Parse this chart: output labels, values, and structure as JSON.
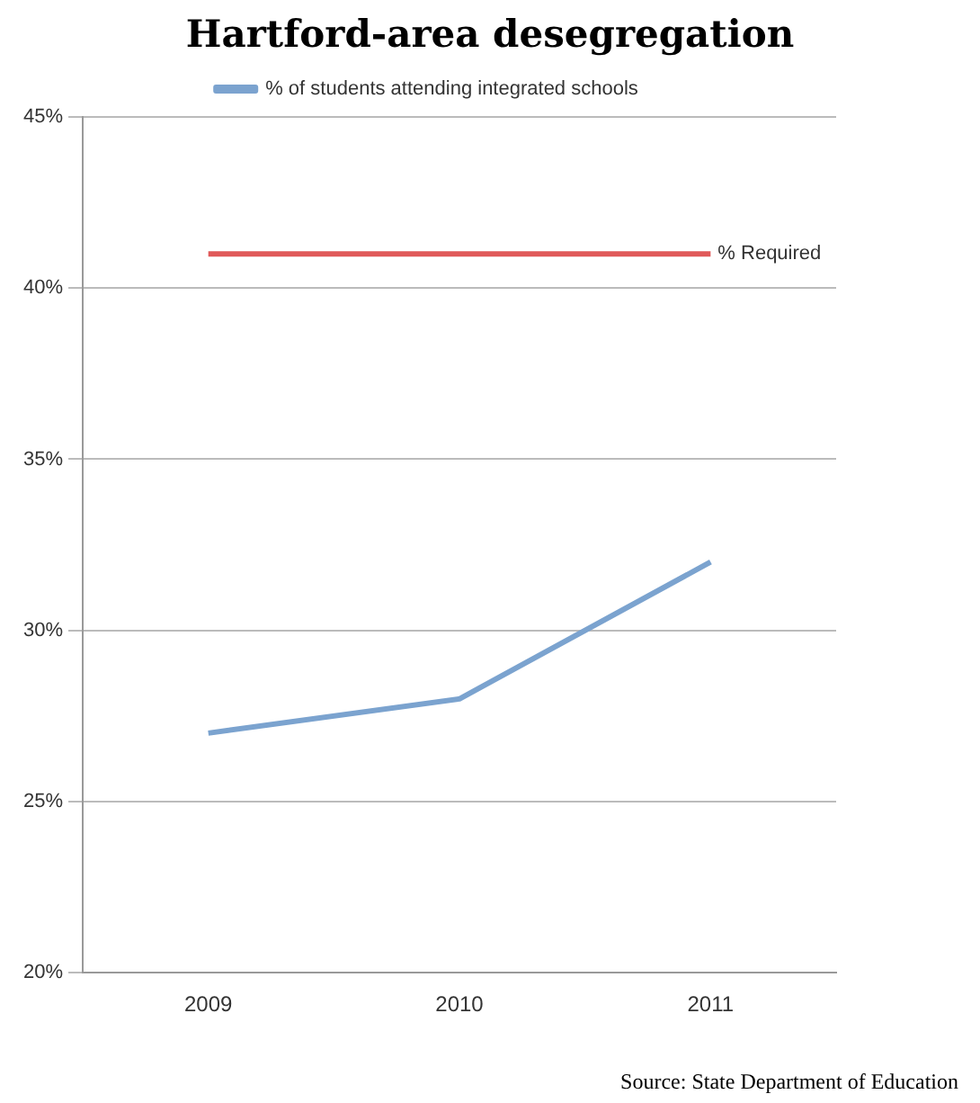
{
  "chart_data": {
    "type": "line",
    "title": "Hartford-area desegregation",
    "categories": [
      "2009",
      "2010",
      "2011"
    ],
    "series": [
      {
        "name": "% of students attending integrated schools",
        "color": "#7ba3cf",
        "values": [
          27,
          28,
          32
        ]
      },
      {
        "name": "% Required",
        "color": "#e05a5a",
        "values": [
          41,
          41,
          41
        ]
      }
    ],
    "ylim": [
      20,
      45
    ],
    "yticks": [
      {
        "value": 20,
        "label": "20%"
      },
      {
        "value": 25,
        "label": "25%"
      },
      {
        "value": 30,
        "label": "30%"
      },
      {
        "value": 35,
        "label": "35%"
      },
      {
        "value": 40,
        "label": "40%"
      },
      {
        "value": 45,
        "label": "45%"
      }
    ],
    "grid": "y",
    "legend": "top",
    "marker": "none",
    "annotations": [
      "Source: State Department of Education"
    ]
  }
}
